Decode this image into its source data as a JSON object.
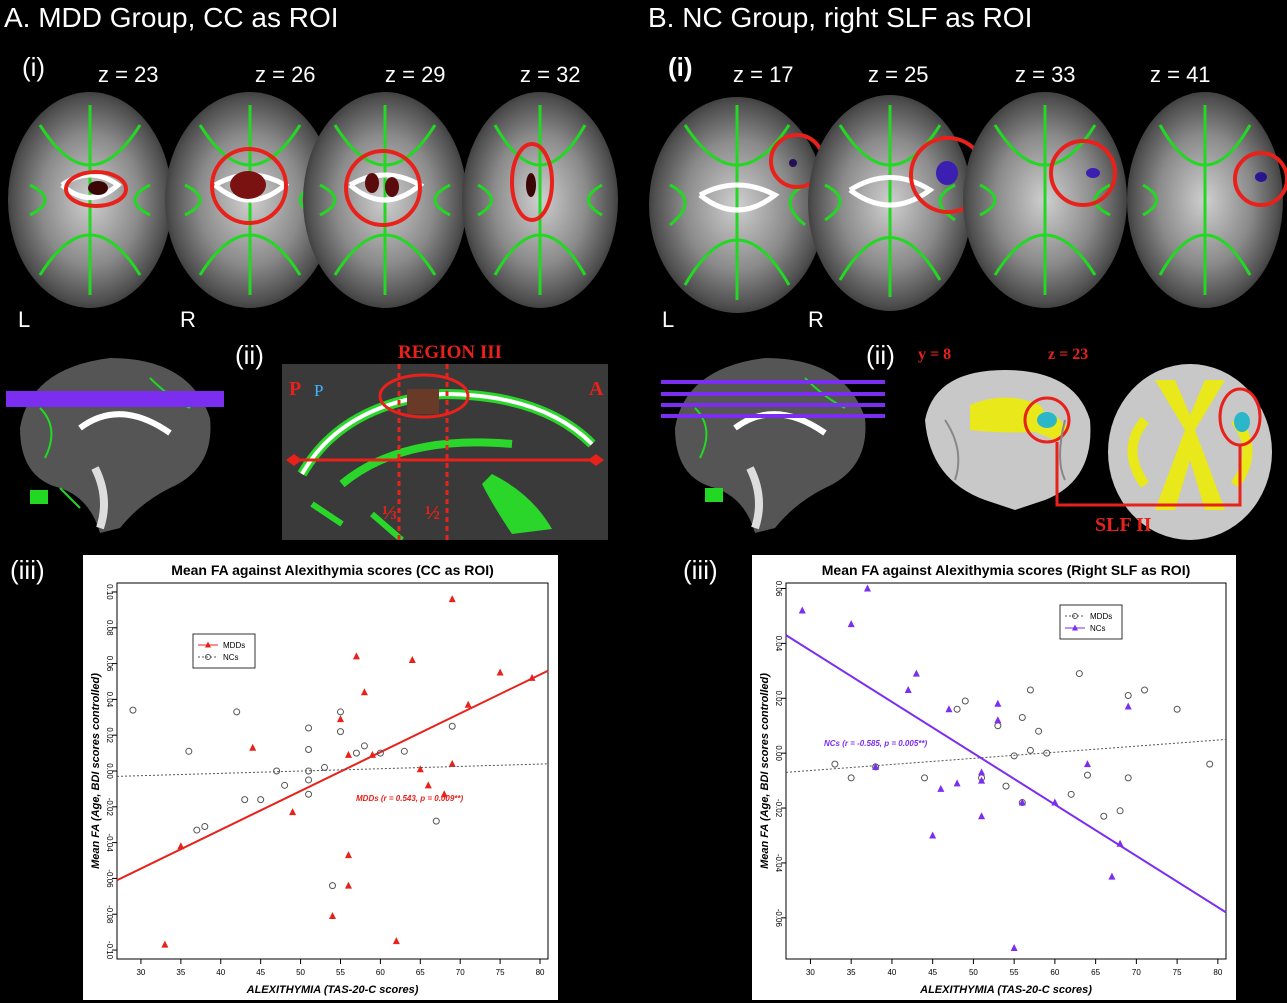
{
  "panelA": {
    "title": "A. MDD Group, CC as ROI",
    "sub_i": "(i)",
    "sub_ii": "(ii)",
    "sub_iii": "(iii)",
    "z_labels": [
      "z = 23",
      "z = 26",
      "z = 29",
      "z = 32"
    ],
    "left_label": "L",
    "right_label": "R",
    "region_label": "REGION III",
    "p_label": "P",
    "p2_label": "P",
    "a_label": "A",
    "frac1": "⅓",
    "frac2": "½"
  },
  "panelB": {
    "title": "B. NC Group, right SLF as ROI",
    "sub_i": "(i)",
    "sub_ii": "(ii)",
    "sub_iii": "(iii)",
    "z_labels": [
      "z = 17",
      "z = 25",
      "z = 33",
      "z = 41"
    ],
    "left_label": "L",
    "right_label": "R",
    "y_label": "y = 8",
    "z_label": "z = 23",
    "slf_label": "SLF II"
  },
  "colors": {
    "red": "#e8211b",
    "purple": "#7b2df0",
    "green": "#2bd62b",
    "yellow": "#e8e81a",
    "cyan": "#2bb7c9"
  },
  "chart_data": [
    {
      "type": "scatter",
      "title": "Mean FA against Alexithymia scores (CC as ROI)",
      "xlabel": "ALEXITHYMIA (TAS-20-C scores)",
      "ylabel": "Mean FA (Age, BDI scores controlled)",
      "xlim": [
        27,
        81
      ],
      "ylim": [
        -0.105,
        0.105
      ],
      "xticks": [
        30,
        35,
        40,
        45,
        50,
        55,
        60,
        65,
        70,
        75,
        80
      ],
      "yticks": [
        -0.1,
        -0.08,
        -0.06,
        -0.04,
        -0.02,
        0.0,
        0.02,
        0.04,
        0.06,
        0.08,
        0.1
      ],
      "ytick_labels": [
        "-0.10",
        "-0.08",
        "-0.06",
        "-0.04",
        "-0.02",
        "0.00",
        "0.02",
        "0.04",
        "0.06",
        "0.08",
        "0.10"
      ],
      "legend": {
        "placement": "top-left",
        "entries": [
          "MDDs",
          "NCs"
        ]
      },
      "annotation": "MDDs (r  = 0.543,  p = 0.009**)",
      "series": [
        {
          "name": "MDDs",
          "marker": "triangle",
          "color": "#e8211b",
          "line": "solid",
          "x": [
            33,
            35,
            44,
            49,
            54,
            55,
            56,
            56,
            56,
            57,
            58,
            59,
            62,
            64,
            65,
            66,
            68,
            69,
            69,
            71,
            75,
            79
          ],
          "y": [
            -0.097,
            -0.042,
            0.013,
            -0.023,
            -0.081,
            0.029,
            -0.047,
            -0.064,
            0.009,
            0.064,
            0.044,
            0.009,
            -0.095,
            0.062,
            0.001,
            -0.008,
            -0.013,
            0.096,
            0.004,
            0.037,
            0.055,
            0.052
          ],
          "fit": [
            [
              27,
              -0.061
            ],
            [
              81,
              0.056
            ]
          ]
        },
        {
          "name": "NCs",
          "marker": "circle",
          "color": "#555555",
          "line": "dotted",
          "x": [
            29,
            36,
            37,
            38,
            42,
            43,
            45,
            47,
            48,
            51,
            51,
            51,
            51,
            51,
            53,
            54,
            55,
            55,
            57,
            58,
            60,
            63,
            67,
            69
          ],
          "y": [
            0.034,
            0.011,
            -0.033,
            -0.031,
            0.033,
            -0.016,
            -0.016,
            0.0,
            -0.008,
            0.024,
            0.012,
            -0.005,
            -0.013,
            0.0,
            0.002,
            -0.064,
            0.033,
            0.022,
            0.01,
            0.014,
            0.01,
            0.011,
            -0.028,
            0.025
          ],
          "fit": [
            [
              27,
              -0.003
            ],
            [
              81,
              0.004
            ]
          ]
        }
      ]
    },
    {
      "type": "scatter",
      "title": "Mean FA against Alexithymia scores (Right SLF as ROI)",
      "xlabel": "ALEXITHYMIA (TAS-20-C scores)",
      "ylabel": "Mean FA (Age, BDI scores controlled)",
      "xlim": [
        27,
        81
      ],
      "ylim": [
        -0.075,
        0.062
      ],
      "xticks": [
        30,
        35,
        40,
        45,
        50,
        55,
        60,
        65,
        70,
        75,
        80
      ],
      "yticks": [
        -0.06,
        -0.04,
        -0.02,
        0.0,
        0.02,
        0.04,
        0.06
      ],
      "ytick_labels": [
        "-0.06",
        "-0.04",
        "-0.02",
        "0.00",
        "0.02",
        "0.04",
        "0.06"
      ],
      "legend": {
        "placement": "top-right",
        "entries": [
          "MDDs",
          "NCs"
        ]
      },
      "annotation": "NCs (r = -0.585,  p = 0.005**)",
      "series": [
        {
          "name": "MDDs",
          "marker": "circle",
          "color": "#555555",
          "line": "dotted",
          "x": [
            33,
            35,
            38,
            44,
            48,
            49,
            51,
            53,
            54,
            55,
            56,
            56,
            57,
            57,
            58,
            59,
            62,
            63,
            64,
            66,
            68,
            69,
            69,
            71,
            75,
            79
          ],
          "y": [
            -0.004,
            -0.009,
            -0.005,
            -0.009,
            0.016,
            0.019,
            -0.009,
            0.01,
            -0.012,
            -0.001,
            0.013,
            -0.018,
            0.023,
            0.001,
            0.008,
            0.0,
            -0.015,
            0.029,
            -0.008,
            -0.023,
            -0.021,
            0.021,
            -0.009,
            0.023,
            0.016,
            -0.004
          ],
          "fit": [
            [
              27,
              -0.007
            ],
            [
              81,
              0.005
            ]
          ]
        },
        {
          "name": "NCs",
          "marker": "triangle",
          "color": "#7b2df0",
          "line": "solid",
          "x": [
            29,
            35,
            37,
            38,
            42,
            43,
            45,
            46,
            47,
            48,
            51,
            51,
            51,
            53,
            53,
            55,
            56,
            60,
            64,
            67,
            68,
            69
          ],
          "y": [
            0.052,
            0.047,
            0.06,
            -0.005,
            0.023,
            0.029,
            -0.03,
            -0.013,
            0.016,
            -0.011,
            -0.007,
            -0.01,
            -0.023,
            0.018,
            0.012,
            -0.071,
            -0.018,
            -0.018,
            -0.004,
            -0.045,
            -0.033,
            0.017
          ],
          "fit": [
            [
              27,
              0.043
            ],
            [
              81,
              -0.058
            ]
          ]
        }
      ]
    }
  ]
}
